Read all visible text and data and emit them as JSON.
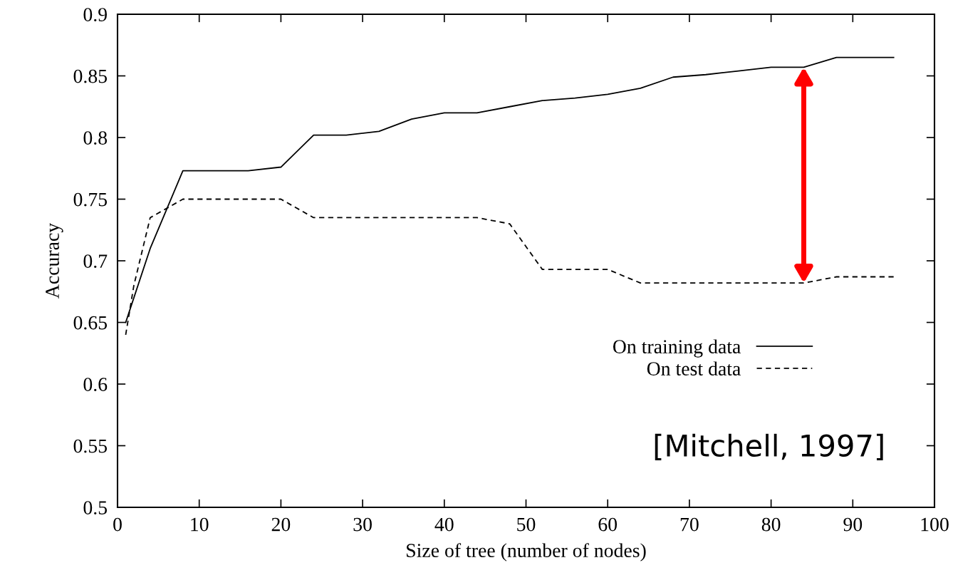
{
  "chart_data": {
    "type": "line",
    "xlabel": "Size of tree (number of nodes)",
    "ylabel": "Accuracy",
    "xlim": [
      0,
      100
    ],
    "xticks": [
      0,
      10,
      20,
      30,
      40,
      50,
      60,
      70,
      80,
      90,
      100
    ],
    "ylim": [
      0.5,
      0.9
    ],
    "yticks": [
      0.5,
      0.55,
      0.6,
      0.65,
      0.7,
      0.75,
      0.8,
      0.85,
      0.9
    ],
    "legend": "right",
    "grid": false,
    "series": [
      {
        "name": "On training data",
        "color": "#000000",
        "line_style": "solid",
        "x": [
          1,
          4,
          8,
          16,
          20,
          24,
          28,
          32,
          36,
          40,
          44,
          48,
          52,
          56,
          60,
          64,
          68,
          72,
          76,
          80,
          84,
          88,
          95
        ],
        "values": [
          0.65,
          0.71,
          0.773,
          0.773,
          0.776,
          0.802,
          0.802,
          0.805,
          0.815,
          0.82,
          0.82,
          0.825,
          0.83,
          0.832,
          0.835,
          0.84,
          0.849,
          0.851,
          0.854,
          0.857,
          0.857,
          0.865,
          0.865
        ]
      },
      {
        "name": "On test data",
        "color": "#000000",
        "line_style": "dashed",
        "x": [
          1,
          2,
          4,
          8,
          20,
          24,
          44,
          48,
          52,
          60,
          64,
          84,
          88,
          95
        ],
        "values": [
          0.64,
          0.68,
          0.735,
          0.75,
          0.75,
          0.735,
          0.735,
          0.73,
          0.693,
          0.693,
          0.682,
          0.682,
          0.687,
          0.687
        ]
      }
    ],
    "annotations": [
      "[Mitchell, 1997]"
    ]
  }
}
